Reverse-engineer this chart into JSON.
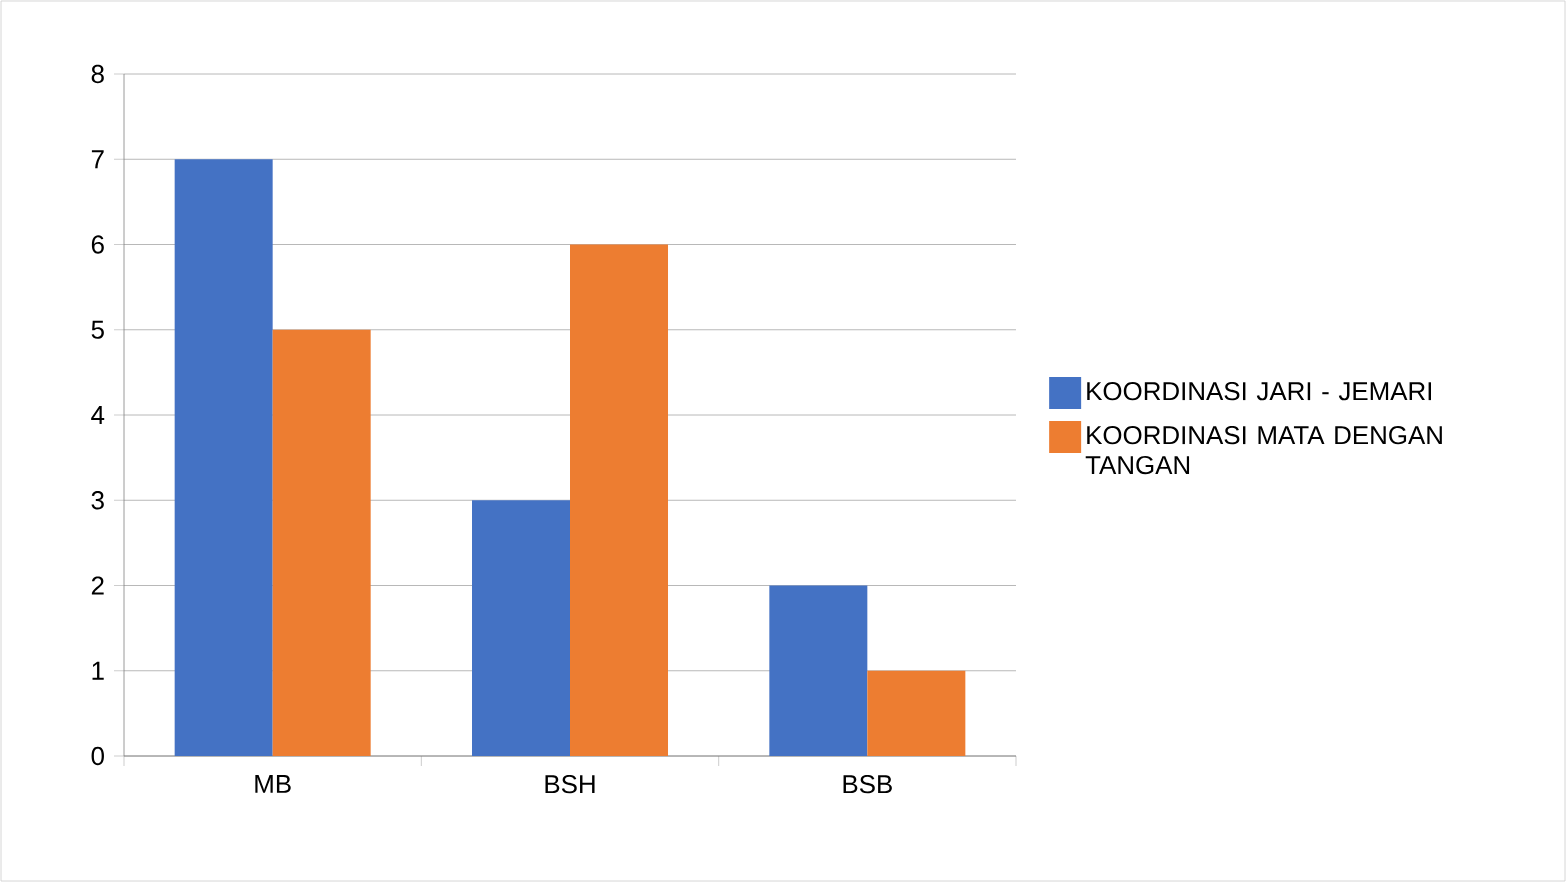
{
  "chart_data": {
    "type": "bar",
    "categories": [
      "MB",
      "BSH",
      "BSB"
    ],
    "series": [
      {
        "name": "KOORDINASI JARI - JEMARI",
        "color": "#4472c4",
        "values": [
          7,
          3,
          2
        ]
      },
      {
        "name": "KOORDINASI MATA DENGAN TANGAN",
        "color": "#ed7d31",
        "values": [
          5,
          6,
          1
        ]
      }
    ],
    "ylim": [
      0,
      8
    ],
    "yticks": [
      0,
      1,
      2,
      3,
      4,
      5,
      6,
      7,
      8
    ],
    "grid": "y",
    "legend": "right"
  }
}
